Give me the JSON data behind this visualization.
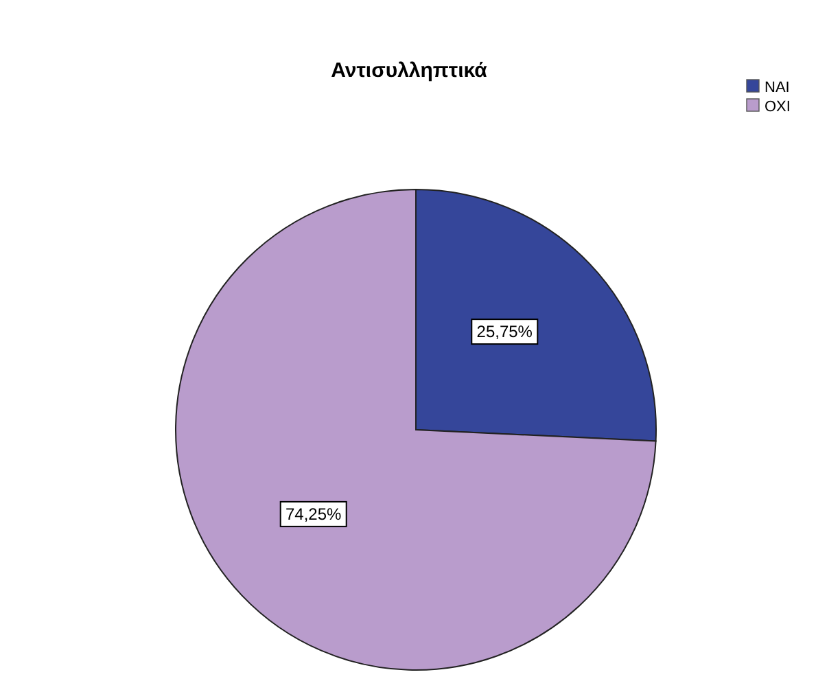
{
  "chart_data": {
    "type": "pie",
    "title": "Αντισυλληπτικά",
    "categories": [
      "ΝΑΙ",
      "ΟΧΙ"
    ],
    "values": [
      25.75,
      74.25
    ],
    "colors": [
      "#35469a",
      "#b99ccc"
    ],
    "value_labels": [
      "25,75%",
      "74,25%"
    ],
    "legend": "top right"
  }
}
